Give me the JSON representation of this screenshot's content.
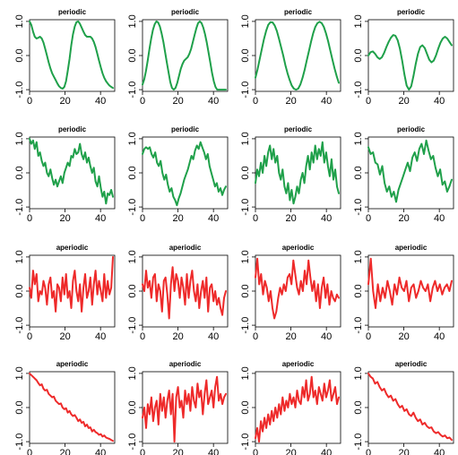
{
  "chart_data": [
    {
      "type": "line",
      "title": "periodic",
      "color": "#1fa04a",
      "x_ticks": [
        0,
        20,
        40
      ],
      "y_ticks": [
        "-1.0",
        "0.0",
        "1.0"
      ],
      "xlim": [
        0,
        48
      ],
      "ylim": [
        -1.05,
        1.05
      ],
      "values": [
        1.0,
        0.9,
        0.7,
        0.55,
        0.5,
        0.52,
        0.55,
        0.5,
        0.38,
        0.2,
        0.0,
        -0.2,
        -0.38,
        -0.52,
        -0.62,
        -0.72,
        -0.82,
        -0.9,
        -0.95,
        -0.97,
        -0.92,
        -0.75,
        -0.45,
        -0.1,
        0.3,
        0.62,
        0.85,
        0.98,
        1.0,
        0.93,
        0.82,
        0.7,
        0.6,
        0.55,
        0.55,
        0.55,
        0.5,
        0.4,
        0.25,
        0.05,
        -0.15,
        -0.35,
        -0.52,
        -0.65,
        -0.75,
        -0.82,
        -0.88,
        -0.92,
        -0.95
      ]
    },
    {
      "type": "line",
      "title": "periodic",
      "color": "#1fa04a",
      "x_ticks": [
        0,
        20,
        40
      ],
      "y_ticks": [
        "-1.0",
        "0.0",
        "1.0"
      ],
      "xlim": [
        0,
        48
      ],
      "ylim": [
        -1.05,
        1.05
      ],
      "values": [
        -0.85,
        -0.7,
        -0.45,
        -0.15,
        0.2,
        0.5,
        0.75,
        0.92,
        1.0,
        0.97,
        0.85,
        0.65,
        0.4,
        0.1,
        -0.2,
        -0.5,
        -0.78,
        -0.95,
        -1.0,
        -0.95,
        -0.8,
        -0.6,
        -0.4,
        -0.25,
        -0.15,
        -0.1,
        -0.05,
        0.05,
        0.2,
        0.4,
        0.6,
        0.8,
        0.95,
        1.0,
        0.95,
        0.82,
        0.62,
        0.38,
        0.1,
        -0.2,
        -0.5,
        -0.75,
        -0.92,
        -1.0,
        -1.0,
        -1.0,
        -1.0,
        -1.0,
        -1.0
      ]
    },
    {
      "type": "line",
      "title": "periodic",
      "color": "#1fa04a",
      "x_ticks": [
        0,
        20,
        40
      ],
      "y_ticks": [
        "-1.0",
        "0.0",
        "1.0"
      ],
      "xlim": [
        0,
        48
      ],
      "ylim": [
        -1.05,
        1.05
      ],
      "values": [
        -0.65,
        -0.4,
        -0.1,
        0.2,
        0.48,
        0.72,
        0.9,
        0.98,
        0.97,
        0.88,
        0.72,
        0.5,
        0.25,
        0.0,
        -0.28,
        -0.52,
        -0.72,
        -0.88,
        -0.97,
        -1.0,
        -0.97,
        -0.85,
        -0.66,
        -0.42,
        -0.15,
        0.12,
        0.4,
        0.65,
        0.84,
        0.95,
        0.99,
        0.95,
        0.84,
        0.65,
        0.42,
        0.15,
        -0.12,
        -0.38,
        -0.6,
        -0.8
      ]
    },
    {
      "type": "line",
      "title": "periodic",
      "color": "#1fa04a",
      "x_ticks": [
        0,
        20,
        40
      ],
      "y_ticks": [
        "-1.0",
        "0.0",
        "1.0"
      ],
      "xlim": [
        0,
        48
      ],
      "ylim": [
        -1.05,
        1.05
      ],
      "values": [
        0.0,
        0.1,
        0.12,
        0.05,
        -0.05,
        -0.1,
        -0.05,
        0.08,
        0.25,
        0.4,
        0.52,
        0.6,
        0.58,
        0.45,
        0.2,
        -0.15,
        -0.55,
        -0.88,
        -1.0,
        -0.9,
        -0.6,
        -0.25,
        0.05,
        0.25,
        0.3,
        0.22,
        0.05,
        -0.12,
        -0.2,
        -0.15,
        0.0,
        0.2,
        0.38,
        0.5,
        0.55,
        0.5,
        0.4,
        0.3
      ]
    },
    {
      "type": "line",
      "title": "periodic",
      "color": "#1fa04a",
      "x_ticks": [
        0,
        20,
        40
      ],
      "y_ticks": [
        "-1.0",
        "0.0",
        "1.0"
      ],
      "xlim": [
        0,
        48
      ],
      "ylim": [
        -1.05,
        1.05
      ],
      "values": [
        1.0,
        0.85,
        0.95,
        0.7,
        0.9,
        0.5,
        0.6,
        0.35,
        0.2,
        0.3,
        0.0,
        -0.1,
        0.1,
        -0.15,
        -0.35,
        -0.2,
        -0.4,
        -0.25,
        -0.1,
        -0.3,
        0.0,
        0.15,
        0.3,
        0.2,
        0.5,
        0.45,
        0.7,
        0.55,
        0.6,
        0.85,
        0.55,
        0.4,
        0.6,
        0.3,
        0.45,
        0.2,
        0.0,
        0.15,
        -0.25,
        -0.4,
        -0.1,
        -0.45,
        -0.7,
        -0.55,
        -0.9,
        -0.6,
        -0.65,
        -0.5,
        -0.7
      ]
    },
    {
      "type": "line",
      "title": "periodic",
      "color": "#1fa04a",
      "x_ticks": [
        0,
        20,
        40
      ],
      "y_ticks": [
        "-1.0",
        "0.0",
        "1.0"
      ],
      "xlim": [
        0,
        48
      ],
      "ylim": [
        -1.05,
        1.05
      ],
      "values": [
        0.55,
        0.7,
        0.75,
        0.7,
        0.75,
        0.55,
        0.45,
        0.6,
        0.3,
        0.2,
        0.35,
        0.0,
        -0.2,
        -0.05,
        -0.35,
        -0.55,
        -0.45,
        -0.7,
        -0.8,
        -0.95,
        -0.75,
        -0.6,
        -0.4,
        -0.2,
        -0.05,
        0.1,
        0.3,
        0.5,
        0.4,
        0.65,
        0.8,
        0.7,
        0.9,
        0.75,
        0.6,
        0.4,
        0.55,
        0.2,
        0.0,
        -0.2,
        -0.4,
        -0.3,
        -0.55,
        -0.45,
        -0.65,
        -0.5,
        -0.4
      ]
    },
    {
      "type": "line",
      "title": "periodic",
      "color": "#1fa04a",
      "x_ticks": [
        0,
        20,
        40
      ],
      "y_ticks": [
        "-1.0",
        "0.0",
        "1.0"
      ],
      "xlim": [
        0,
        48
      ],
      "ylim": [
        -1.05,
        1.05
      ],
      "values": [
        -0.3,
        0.1,
        -0.1,
        0.3,
        0.0,
        0.5,
        0.2,
        0.6,
        0.8,
        0.4,
        0.7,
        0.3,
        0.5,
        0.0,
        -0.2,
        0.1,
        -0.4,
        -0.6,
        -0.3,
        -0.8,
        -0.5,
        -0.9,
        -0.7,
        -0.4,
        -0.6,
        -0.2,
        0.0,
        -0.3,
        0.2,
        0.5,
        0.1,
        0.6,
        0.3,
        0.8,
        0.4,
        0.7,
        0.5,
        0.9,
        0.3,
        0.6,
        0.2,
        -0.1,
        0.4,
        -0.2,
        0.1,
        -0.4,
        -0.6
      ]
    },
    {
      "type": "line",
      "title": "periodic",
      "color": "#1fa04a",
      "x_ticks": [
        0,
        20,
        40
      ],
      "y_ticks": [
        "-1.0",
        "0.0",
        "1.0"
      ],
      "xlim": [
        0,
        48
      ],
      "ylim": [
        -1.05,
        1.05
      ],
      "values": [
        0.75,
        0.55,
        0.6,
        0.3,
        0.25,
        -0.05,
        0.2,
        -0.3,
        -0.55,
        -0.4,
        -0.7,
        -0.55,
        -0.85,
        -0.5,
        -0.3,
        -0.1,
        0.1,
        0.3,
        0.05,
        0.45,
        0.6,
        0.35,
        0.7,
        0.85,
        0.55,
        0.95,
        0.65,
        0.4,
        0.5,
        0.15,
        -0.1,
        0.1,
        -0.35,
        -0.25,
        -0.55,
        -0.4,
        -0.2
      ]
    },
    {
      "type": "line",
      "title": "aperiodic",
      "color": "#ee2a2a",
      "x_ticks": [
        0,
        20,
        40
      ],
      "y_ticks": [
        "-1.0",
        "0.0",
        "1.0"
      ],
      "xlim": [
        0,
        48
      ],
      "ylim": [
        -1.05,
        1.05
      ],
      "values": [
        0.1,
        -0.2,
        0.6,
        0.2,
        0.5,
        -0.3,
        0.0,
        -0.1,
        0.3,
        0.1,
        -0.4,
        0.2,
        0.4,
        -0.2,
        0.0,
        -0.6,
        0.2,
        0.1,
        -0.3,
        0.4,
        -0.1,
        0.5,
        -0.2,
        0.0,
        -0.5,
        0.3,
        0.6,
        0.0,
        -0.3,
        0.2,
        -0.6,
        0.1,
        0.5,
        -0.2,
        0.0,
        0.4,
        -0.4,
        0.2,
        0.6,
        -0.1,
        0.3,
        0.0,
        -0.3,
        0.5,
        -0.2,
        0.3,
        -0.1,
        0.1,
        1.0
      ]
    },
    {
      "type": "line",
      "title": "aperiodic",
      "color": "#ee2a2a",
      "x_ticks": [
        0,
        20,
        40
      ],
      "y_ticks": [
        "-1.0",
        "0.0",
        "1.0"
      ],
      "xlim": [
        0,
        48
      ],
      "ylim": [
        -1.05,
        1.05
      ],
      "values": [
        0.2,
        0.0,
        0.6,
        0.1,
        0.3,
        -0.2,
        0.4,
        0.5,
        -0.3,
        0.2,
        0.0,
        -0.6,
        0.3,
        0.4,
        -0.1,
        -0.8,
        0.2,
        0.7,
        0.0,
        0.5,
        0.3,
        -0.2,
        0.4,
        0.1,
        -0.4,
        0.5,
        -0.2,
        0.3,
        0.6,
        0.0,
        -0.3,
        0.2,
        -0.5,
        0.0,
        0.3,
        -0.2,
        0.4,
        -0.6,
        0.1,
        0.2,
        -0.3,
        0.0,
        -0.4,
        -0.2,
        -0.5,
        -0.7,
        -0.2,
        0.0
      ]
    },
    {
      "type": "line",
      "title": "aperiodic",
      "color": "#ee2a2a",
      "x_ticks": [
        0,
        20,
        40
      ],
      "y_ticks": [
        "-1.0",
        "0.0",
        "1.0"
      ],
      "xlim": [
        0,
        48
      ],
      "ylim": [
        -1.05,
        1.05
      ],
      "values": [
        0.4,
        0.95,
        0.2,
        0.5,
        -0.1,
        0.3,
        0.1,
        -0.3,
        0.0,
        -0.5,
        -0.8,
        -0.6,
        -0.2,
        0.1,
        -0.1,
        0.2,
        0.0,
        0.4,
        0.5,
        0.2,
        0.9,
        0.5,
        0.1,
        -0.1,
        0.3,
        0.0,
        0.6,
        0.2,
        0.9,
        0.4,
        0.0,
        0.3,
        -0.3,
        0.2,
        -0.5,
        0.1,
        0.4,
        -0.2,
        0.2,
        -0.4,
        0.0,
        -0.2,
        -0.3,
        -0.1,
        -0.2
      ]
    },
    {
      "type": "line",
      "title": "aperiodic",
      "color": "#ee2a2a",
      "x_ticks": [
        0,
        20,
        40
      ],
      "y_ticks": [
        "-1.0",
        "0.0",
        "1.0"
      ],
      "xlim": [
        0,
        48
      ],
      "ylim": [
        -1.05,
        1.05
      ],
      "values": [
        0.2,
        0.95,
        0.0,
        -0.5,
        0.2,
        -0.3,
        0.1,
        -0.2,
        0.3,
        0.0,
        -0.4,
        0.2,
        -0.1,
        0.4,
        0.1,
        0.0,
        0.3,
        -0.3,
        0.1,
        0.2,
        -0.2,
        0.0,
        0.3,
        0.1,
        0.0,
        0.2,
        -0.3,
        0.1,
        0.3,
        0.0,
        0.2,
        -0.1,
        0.1,
        0.2,
        0.0,
        0.3
      ]
    },
    {
      "type": "line",
      "title": "aperiodic",
      "color": "#ee2a2a",
      "x_ticks": [
        0,
        20,
        40
      ],
      "y_ticks": [
        "-1.0",
        "0.0",
        "1.0"
      ],
      "xlim": [
        0,
        48
      ],
      "ylim": [
        -1.05,
        1.05
      ],
      "values": [
        1.0,
        0.95,
        0.9,
        0.85,
        0.8,
        0.72,
        0.65,
        0.68,
        0.55,
        0.5,
        0.52,
        0.4,
        0.35,
        0.3,
        0.32,
        0.2,
        0.15,
        0.1,
        0.12,
        0.0,
        -0.05,
        -0.02,
        -0.15,
        -0.1,
        -0.2,
        -0.25,
        -0.22,
        -0.3,
        -0.4,
        -0.35,
        -0.45,
        -0.42,
        -0.55,
        -0.5,
        -0.6,
        -0.58,
        -0.7,
        -0.65,
        -0.72,
        -0.75,
        -0.8,
        -0.78,
        -0.85,
        -0.82,
        -0.88,
        -0.9,
        -0.92,
        -0.95,
        -0.98
      ]
    },
    {
      "type": "line",
      "title": "aperiodic",
      "color": "#ee2a2a",
      "x_ticks": [
        0,
        20,
        40
      ],
      "y_ticks": [
        "-1.0",
        "0.0",
        "1.0"
      ],
      "xlim": [
        0,
        48
      ],
      "ylim": [
        -1.05,
        1.05
      ],
      "values": [
        -0.3,
        0.0,
        -0.6,
        0.1,
        -0.2,
        0.3,
        -0.4,
        0.0,
        0.2,
        -0.5,
        0.4,
        -0.1,
        0.3,
        -0.3,
        0.2,
        0.5,
        -0.2,
        0.4,
        -1.0,
        0.3,
        0.6,
        0.0,
        0.2,
        -0.3,
        0.5,
        0.1,
        0.4,
        -0.1,
        0.6,
        0.2,
        0.0,
        0.7,
        0.3,
        0.5,
        -0.2,
        0.4,
        0.8,
        0.1,
        0.3,
        0.5,
        0.0,
        0.6,
        0.9,
        0.2,
        0.4,
        0.1,
        0.3,
        0.4
      ]
    },
    {
      "type": "line",
      "title": "aperiodic",
      "color": "#ee2a2a",
      "x_ticks": [
        0,
        20,
        40
      ],
      "y_ticks": [
        "-1.0",
        "0.0",
        "1.0"
      ],
      "xlim": [
        0,
        48
      ],
      "ylim": [
        -1.05,
        1.05
      ],
      "values": [
        -0.9,
        -0.6,
        -1.0,
        -0.4,
        -0.7,
        -0.3,
        -0.6,
        -0.2,
        -0.5,
        -0.1,
        -0.4,
        0.0,
        -0.3,
        0.1,
        -0.2,
        0.3,
        -0.1,
        0.2,
        0.0,
        0.4,
        0.1,
        0.3,
        0.0,
        0.5,
        0.2,
        0.1,
        0.6,
        0.3,
        0.8,
        0.2,
        0.4,
        0.9,
        0.3,
        0.5,
        0.1,
        0.6,
        0.4,
        0.2,
        0.7,
        0.3,
        0.5,
        0.8,
        0.2,
        0.4,
        0.6,
        0.1,
        0.3
      ]
    },
    {
      "type": "line",
      "title": "aperiodic",
      "color": "#ee2a2a",
      "x_ticks": [
        0,
        20,
        40
      ],
      "y_ticks": [
        "-1.0",
        "0.0",
        "1.0"
      ],
      "xlim": [
        0,
        48
      ],
      "ylim": [
        -1.05,
        1.05
      ],
      "values": [
        1.0,
        0.9,
        0.85,
        0.7,
        0.75,
        0.6,
        0.5,
        0.55,
        0.4,
        0.3,
        0.35,
        0.2,
        0.25,
        0.1,
        0.0,
        0.05,
        -0.1,
        -0.05,
        -0.2,
        -0.25,
        -0.15,
        -0.3,
        -0.4,
        -0.35,
        -0.5,
        -0.45,
        -0.55,
        -0.6,
        -0.58,
        -0.7,
        -0.75,
        -0.72,
        -0.8,
        -0.85,
        -0.82,
        -0.9,
        -0.88,
        -0.95
      ]
    }
  ]
}
